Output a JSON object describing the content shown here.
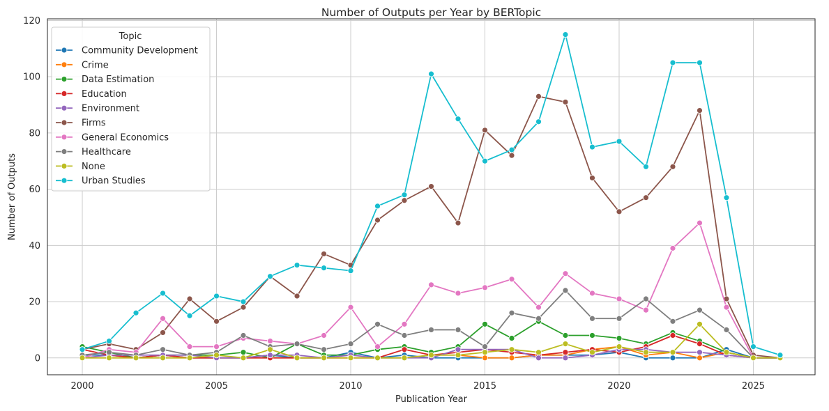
{
  "chart_data": {
    "type": "line",
    "title": "Number of Outputs per Year by BERTopic",
    "xlabel": "Publication Year",
    "ylabel": "Number of Outputs",
    "xlim": [
      1998.7,
      2027.3
    ],
    "ylim": [
      -6,
      120.6
    ],
    "xticks": [
      2000,
      2005,
      2010,
      2015,
      2020,
      2025
    ],
    "yticks": [
      0,
      20,
      40,
      60,
      80,
      100,
      120
    ],
    "grid": true,
    "legend": {
      "title": "Topic",
      "placement": "upper-left"
    },
    "x": [
      2000,
      2001,
      2002,
      2003,
      2004,
      2005,
      2006,
      2007,
      2008,
      2009,
      2010,
      2011,
      2012,
      2013,
      2014,
      2015,
      2016,
      2017,
      2018,
      2019,
      2020,
      2021,
      2022,
      2023,
      2024,
      2025,
      2026
    ],
    "series": [
      {
        "name": "Community Development",
        "color": "#1f77b4",
        "values": [
          1,
          1,
          0,
          1,
          0,
          0,
          0,
          1,
          0,
          0,
          2,
          0,
          1,
          0,
          0,
          0,
          0,
          1,
          1,
          1,
          2,
          0,
          0,
          0,
          3,
          0,
          0
        ]
      },
      {
        "name": "Crime",
        "color": "#ff7f0e",
        "values": [
          0,
          0,
          0,
          0,
          0,
          0,
          0,
          0,
          0,
          0,
          0,
          0,
          0,
          1,
          1,
          0,
          0,
          1,
          1,
          3,
          4,
          1,
          2,
          0,
          2,
          0,
          0
        ]
      },
      {
        "name": "Data Estimation",
        "color": "#2ca02c",
        "values": [
          4,
          2,
          0,
          1,
          1,
          1,
          2,
          0,
          5,
          1,
          1,
          3,
          4,
          2,
          4,
          12,
          7,
          13,
          8,
          8,
          7,
          5,
          9,
          6,
          2,
          0,
          0
        ]
      },
      {
        "name": "Education",
        "color": "#d62728",
        "values": [
          3,
          1,
          0,
          1,
          0,
          0,
          0,
          0,
          0,
          0,
          0,
          0,
          3,
          1,
          2,
          3,
          2,
          1,
          2,
          3,
          2,
          4,
          8,
          5,
          1,
          0,
          0
        ]
      },
      {
        "name": "Environment",
        "color": "#9467bd",
        "values": [
          0,
          1,
          1,
          1,
          1,
          0,
          0,
          1,
          1,
          0,
          1,
          0,
          0,
          0,
          3,
          3,
          3,
          0,
          0,
          1,
          3,
          3,
          2,
          2,
          1,
          0,
          0
        ]
      },
      {
        "name": "Firms",
        "color": "#8c564b",
        "values": [
          3,
          5,
          3,
          9,
          21,
          13,
          18,
          29,
          22,
          37,
          33,
          49,
          56,
          61,
          48,
          81,
          72,
          93,
          91,
          64,
          52,
          57,
          68,
          88,
          21,
          1,
          0
        ]
      },
      {
        "name": "General Economics",
        "color": "#e377c2",
        "values": [
          0,
          3,
          2,
          14,
          4,
          4,
          7,
          6,
          5,
          8,
          18,
          4,
          12,
          26,
          23,
          25,
          28,
          18,
          30,
          23,
          21,
          17,
          39,
          48,
          18,
          0,
          0
        ]
      },
      {
        "name": "Healthcare",
        "color": "#7f7f7f",
        "values": [
          1,
          2,
          1,
          3,
          1,
          2,
          8,
          4,
          5,
          3,
          5,
          12,
          8,
          10,
          10,
          4,
          16,
          14,
          24,
          14,
          14,
          21,
          13,
          17,
          10,
          0,
          0
        ]
      },
      {
        "name": "None",
        "color": "#bcbd22",
        "values": [
          0,
          0,
          0,
          0,
          0,
          1,
          0,
          3,
          0,
          0,
          0,
          0,
          0,
          1,
          1,
          2,
          3,
          2,
          5,
          2,
          4,
          2,
          2,
          12,
          2,
          0,
          0
        ]
      },
      {
        "name": "Urban Studies",
        "color": "#17becf",
        "values": [
          3,
          6,
          16,
          23,
          15,
          22,
          20,
          29,
          33,
          32,
          31,
          54,
          58,
          101,
          85,
          70,
          74,
          84,
          115,
          75,
          77,
          68,
          105,
          105,
          57,
          4,
          1
        ]
      }
    ]
  }
}
